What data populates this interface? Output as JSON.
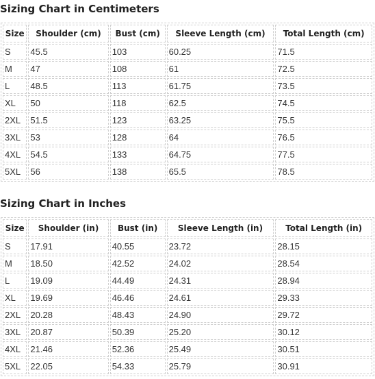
{
  "cm_chart": {
    "title": "Sizing Chart in Centimeters",
    "headers": [
      "Size",
      "Shoulder (cm)",
      "Bust (cm)",
      "Sleeve Length (cm)",
      "Total Length (cm)"
    ],
    "rows": [
      [
        "S",
        "45.5",
        "103",
        "60.25",
        "71.5"
      ],
      [
        "M",
        "47",
        "108",
        "61",
        "72.5"
      ],
      [
        "L",
        "48.5",
        "113",
        "61.75",
        "73.5"
      ],
      [
        "XL",
        "50",
        "118",
        "62.5",
        "74.5"
      ],
      [
        "2XL",
        "51.5",
        "123",
        "63.25",
        "75.5"
      ],
      [
        "3XL",
        "53",
        "128",
        "64",
        "76.5"
      ],
      [
        "4XL",
        "54.5",
        "133",
        "64.75",
        "77.5"
      ],
      [
        "5XL",
        "56",
        "138",
        "65.5",
        "78.5"
      ]
    ]
  },
  "in_chart": {
    "title": "Sizing Chart in Inches",
    "headers": [
      "Size",
      "Shoulder (in)",
      "Bust (in)",
      "Sleeve Length (in)",
      "Total Length (in)"
    ],
    "rows": [
      [
        "S",
        "17.91",
        "40.55",
        "23.72",
        "28.15"
      ],
      [
        "M",
        "18.50",
        "42.52",
        "24.02",
        "28.54"
      ],
      [
        "L",
        "19.09",
        "44.49",
        "24.31",
        "28.94"
      ],
      [
        "XL",
        "19.69",
        "46.46",
        "24.61",
        "29.33"
      ],
      [
        "2XL",
        "20.28",
        "48.43",
        "24.90",
        "29.72"
      ],
      [
        "3XL",
        "20.87",
        "50.39",
        "25.20",
        "30.12"
      ],
      [
        "4XL",
        "21.46",
        "52.36",
        "25.49",
        "30.51"
      ],
      [
        "5XL",
        "22.05",
        "54.33",
        "25.79",
        "30.91"
      ]
    ]
  }
}
